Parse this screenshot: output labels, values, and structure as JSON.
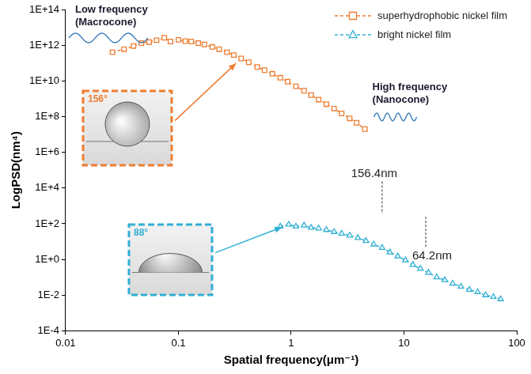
{
  "chart_data": {
    "type": "line",
    "log": true,
    "grid": false,
    "legend": "upper right",
    "x_label": "Spatial frequency(μm⁻¹)",
    "y_label": "LogPSD(nm⁴)",
    "xlim": [
      0.01,
      100
    ],
    "xticks": [
      0.01,
      0.1,
      1,
      10,
      100
    ],
    "ylim": [
      0.0001,
      100000000000000.0
    ],
    "yticks": [
      {
        "value": 0.0001,
        "label": "1E-4"
      },
      {
        "value": 0.01,
        "label": "1E-2"
      },
      {
        "value": 1,
        "label": "1E+0"
      },
      {
        "value": 100.0,
        "label": "1E+2"
      },
      {
        "value": 10000.0,
        "label": "1E+4"
      },
      {
        "value": 1000000.0,
        "label": "1E+6"
      },
      {
        "value": 100000000.0,
        "label": "1E+8"
      },
      {
        "value": 10000000000.0,
        "label": "1E+10"
      },
      {
        "value": 1000000000000.0,
        "label": "1E+12"
      },
      {
        "value": 100000000000000.0,
        "label": "1E+14"
      }
    ],
    "series": [
      {
        "name": "superhydrophobic nickel film",
        "color": "#ed7d31",
        "marker": "square",
        "line_style": "dashed",
        "x": [
          0.026,
          0.033,
          0.04,
          0.047,
          0.055,
          0.064,
          0.075,
          0.085,
          0.1,
          0.115,
          0.13,
          0.15,
          0.17,
          0.2,
          0.23,
          0.27,
          0.31,
          0.36,
          0.42,
          0.5,
          0.58,
          0.68,
          0.8,
          0.93,
          1.1,
          1.3,
          1.5,
          1.75,
          2.05,
          2.4,
          2.8,
          3.3,
          3.8,
          4.5
        ],
        "values": [
          400000000000.0,
          600000000000.0,
          900000000000.0,
          1300000000000.0,
          1500000000000.0,
          1900000000000.0,
          2600000000000.0,
          1600000000000.0,
          2000000000000.0,
          1700000000000.0,
          1600000000000.0,
          1300000000000.0,
          1100000000000.0,
          800000000000.0,
          600000000000.0,
          400000000000.0,
          280000000000.0,
          180000000000.0,
          110000000000.0,
          60000000000.0,
          40000000000.0,
          25000000000.0,
          15000000000.0,
          9000000000.0,
          5000000000.0,
          2800000000.0,
          1600000000.0,
          900000000.0,
          500000000.0,
          280000000.0,
          150000000.0,
          80000000.0,
          45000000.0,
          20000000.0
        ]
      },
      {
        "name": "bright nickel film",
        "color": "#31b0d5",
        "marker": "triangle",
        "line_style": "dashed",
        "x": [
          0.8,
          0.95,
          1.1,
          1.3,
          1.5,
          1.75,
          2.05,
          2.4,
          2.8,
          3.3,
          3.9,
          4.6,
          5.4,
          6.4,
          7.5,
          8.8,
          10.3,
          12,
          14,
          16.5,
          19.5,
          23,
          27,
          32,
          38,
          45,
          53,
          62,
          72
        ],
        "values": [
          70,
          90,
          70,
          80,
          60,
          55,
          45,
          35,
          28,
          22,
          16,
          11,
          7,
          4.5,
          2.5,
          1.5,
          0.9,
          0.5,
          0.3,
          0.18,
          0.1,
          0.07,
          0.045,
          0.03,
          0.02,
          0.015,
          0.01,
          0.008,
          0.006
        ]
      }
    ],
    "annotations": [
      {
        "text": "Low frequency\n(Macrocone)"
      },
      {
        "text": "High frequency\n(Nanocone)"
      }
    ],
    "wavelength_marks": [
      {
        "label": "156.4nm",
        "x": 6.4
      },
      {
        "label": "64.2nm",
        "x": 15.6
      }
    ],
    "contact_angles": [
      {
        "label": "156°",
        "series": "superhydrophobic nickel film"
      },
      {
        "label": "88°",
        "series": "bright nickel film"
      }
    ]
  }
}
